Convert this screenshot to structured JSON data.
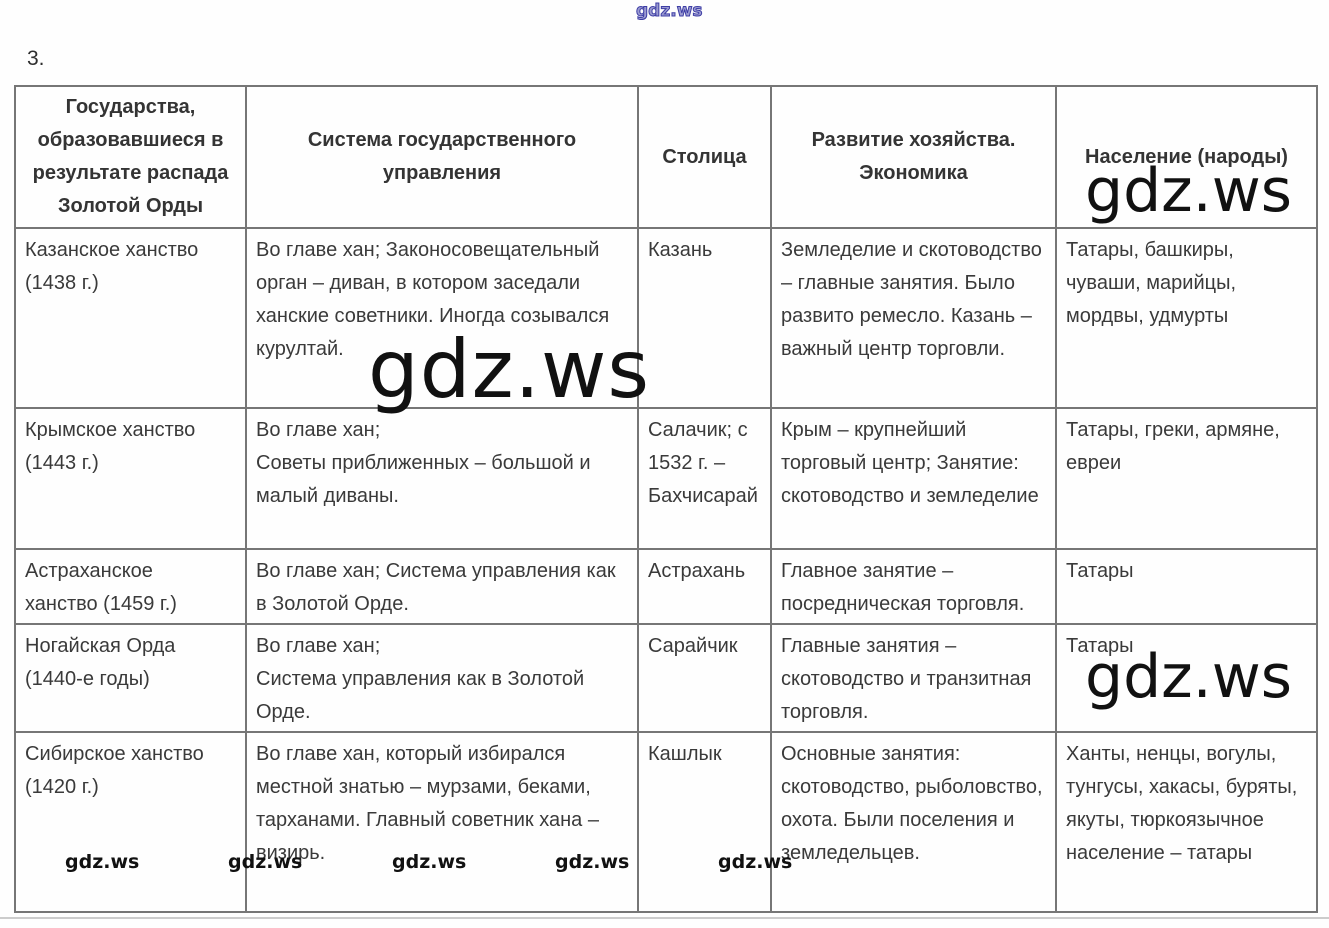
{
  "page": {
    "item_number": "3.",
    "watermark_text": "gdz.ws"
  },
  "table": {
    "columns": {
      "states": "Государства, образовавшиеся в результате распада Золотой Орды",
      "system": "Система государственного управления",
      "capital": "Столица",
      "economy": "Развитие хозяйства.\nЭкономика",
      "population": "Население (народы)"
    },
    "rows": [
      {
        "state": "Казанское ханство\n(1438 г.)",
        "system": "Во главе хан; Законосовещательный орган – диван, в котором заседали ханские советники. Иногда созывался курултай.",
        "capital": "Казань",
        "economy": "Земледелие и скотоводство – главные занятия. Было развито ремесло. Казань – важный центр торговли.",
        "population": "Татары, башкиры, чуваши, марийцы, мордвы, удмурты"
      },
      {
        "state": "Крымское ханство\n(1443 г.)",
        "system": "Во главе хан;\nСоветы приближенных – большой и малый диваны.",
        "capital": "Салачик; с\n1532 г. –\nБахчисарай",
        "economy": "Крым – крупнейший торговый центр; Занятие: скотоводство и земледелие",
        "population": "Татары, греки, армяне, евреи"
      },
      {
        "state": "Астраханское\nханство (1459 г.)",
        "system": "Во главе хан; Система управления как в Золотой Орде.",
        "capital": "Астрахань",
        "economy": "Главное занятие – посредническая торговля.",
        "population": "Татары"
      },
      {
        "state": "Ногайская Орда\n(1440-е годы)",
        "system": "Во главе хан;\nСистема управления как в Золотой Орде.",
        "capital": "Сарайчик",
        "economy": "Главные занятия – скотоводство и транзитная торговля.",
        "population": "Татары"
      },
      {
        "state": "Сибирское ханство\n(1420 г.)",
        "system": "Во главе хан, который избирался местной знатью – мурзами, беками, тарханами. Главный советник хана – визирь.",
        "capital": "Кашлык",
        "economy": "Основные занятия: скотоводство, рыболовство, охота. Были поселения и земледельцев.",
        "population": "Ханты, ненцы, вогулы, тунгусы, хакасы, буряты, якуты, тюркоязычное население – татары"
      }
    ]
  }
}
